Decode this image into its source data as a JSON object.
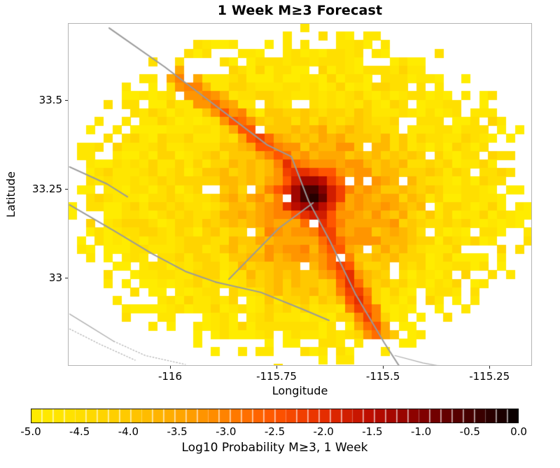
{
  "chart_data": {
    "type": "heatmap",
    "title": "1 Week M≥3 Forecast",
    "xlabel": "Longitude",
    "ylabel": "Latitude",
    "xlim": [
      -116.24,
      -115.15
    ],
    "ylim": [
      32.752,
      33.717
    ],
    "xticks": [
      -116,
      -115.75,
      -115.5,
      -115.25
    ],
    "xtick_labels": [
      "-116",
      "-115.75",
      "-115.5",
      "-115.25"
    ],
    "yticks": [
      33.5,
      33.25,
      33
    ],
    "ytick_labels": [
      "33.5",
      "33.25",
      "33"
    ],
    "grid": false,
    "cell_size_deg": [
      0.021,
      0.024
    ],
    "value_range": [
      -5,
      0
    ],
    "colorbar": {
      "label": "Log10 Probability M≥3, 1 Week",
      "ticks": [
        -5.0,
        -4.5,
        -4.0,
        -3.5,
        -3.0,
        -2.5,
        -2.0,
        -1.5,
        -1.0,
        -0.5,
        0.0
      ],
      "tick_labels": [
        "-5.0",
        "-4.5",
        "-4.0",
        "-3.5",
        "-3.0",
        "-2.5",
        "-2.0",
        "-1.5",
        "-1.0",
        "-0.5",
        "0.0"
      ],
      "segments": 44,
      "position": "bottom"
    },
    "colormap_stops": [
      [
        0.0,
        "#ffec00"
      ],
      [
        0.1,
        "#ffdf00"
      ],
      [
        0.2,
        "#ffc800"
      ],
      [
        0.3,
        "#ffa800"
      ],
      [
        0.4,
        "#ff8200"
      ],
      [
        0.5,
        "#ff5500"
      ],
      [
        0.6,
        "#e62e00"
      ],
      [
        0.7,
        "#bb0c00"
      ],
      [
        0.8,
        "#840000"
      ],
      [
        0.9,
        "#460000"
      ],
      [
        1.0,
        "#050000"
      ]
    ],
    "style": {
      "background": "#ffffff",
      "frame_color": "#b4b4b4",
      "tick_color": "#262626",
      "fault_color": "#999999",
      "fault_light_color": "#ababab",
      "colorbar_border": "#111111"
    },
    "field_model": {
      "seed": 11,
      "region": {
        "center": [
          -115.69,
          33.228
        ],
        "radii": [
          0.527,
          0.445
        ],
        "edge_fray": 0.12
      },
      "dropout_prob": 0.022,
      "background": {
        "base": -4.78,
        "center_boost": 0.55
      },
      "halo": {
        "center": [
          -115.65,
          33.2
        ],
        "radii": [
          0.33,
          0.35
        ],
        "peak": -3.2,
        "falloff": 1.8
      },
      "hotspot": {
        "center": [
          -115.67,
          33.235
        ],
        "peak": 0.0,
        "scale_deg": 0.032,
        "exponent": 1.15
      },
      "ridge": {
        "points": [
          [
            -116.01,
            33.59
          ],
          [
            -115.84,
            33.44
          ],
          [
            -115.73,
            33.33
          ],
          [
            -115.67,
            33.235
          ],
          [
            -115.62,
            33.1
          ],
          [
            -115.56,
            32.94
          ],
          [
            -115.51,
            32.84
          ]
        ],
        "peaks": [
          -3.0,
          -2.6,
          -2.3,
          -1.3,
          -2.2,
          -2.0,
          -2.8
        ],
        "width_deg": 0.03,
        "falloff_exp": 1.6,
        "falloff_amp": 1.1
      }
    },
    "fault_lines": [
      [
        [
          -116.143,
          33.703
        ],
        [
          -116.013,
          33.594
        ],
        [
          -115.772,
          33.374
        ],
        [
          -115.715,
          33.341
        ],
        [
          -115.675,
          33.217
        ],
        [
          -115.624,
          33.102
        ],
        [
          -115.565,
          32.955
        ],
        [
          -115.497,
          32.817
        ],
        [
          -115.46,
          32.748
        ]
      ],
      [
        [
          -115.664,
          33.211
        ],
        [
          -115.744,
          33.14
        ],
        [
          -115.862,
          32.996
        ]
      ],
      [
        [
          -116.236,
          33.312
        ],
        [
          -116.148,
          33.264
        ],
        [
          -116.1,
          33.228
        ]
      ],
      [
        [
          -116.236,
          33.205
        ],
        [
          -116.131,
          33.132
        ],
        [
          -116.041,
          33.067
        ],
        [
          -115.964,
          33.018
        ],
        [
          -115.893,
          32.988
        ]
      ],
      [
        [
          -115.893,
          32.988
        ],
        [
          -115.787,
          32.959
        ],
        [
          -115.688,
          32.911
        ],
        [
          -115.627,
          32.88
        ]
      ]
    ],
    "fault_lines_thin": [
      [
        [
          -116.236,
          32.898
        ],
        [
          -116.19,
          32.864
        ],
        [
          -116.132,
          32.821
        ]
      ],
      [
        [
          -115.472,
          32.781
        ],
        [
          -115.406,
          32.76
        ],
        [
          -115.332,
          32.744
        ]
      ]
    ],
    "fault_lines_dotted": [
      [
        [
          -116.132,
          32.821
        ],
        [
          -116.058,
          32.781
        ],
        [
          -115.964,
          32.756
        ]
      ],
      [
        [
          -116.236,
          32.856
        ],
        [
          -116.165,
          32.813
        ],
        [
          -116.082,
          32.768
        ]
      ]
    ]
  }
}
